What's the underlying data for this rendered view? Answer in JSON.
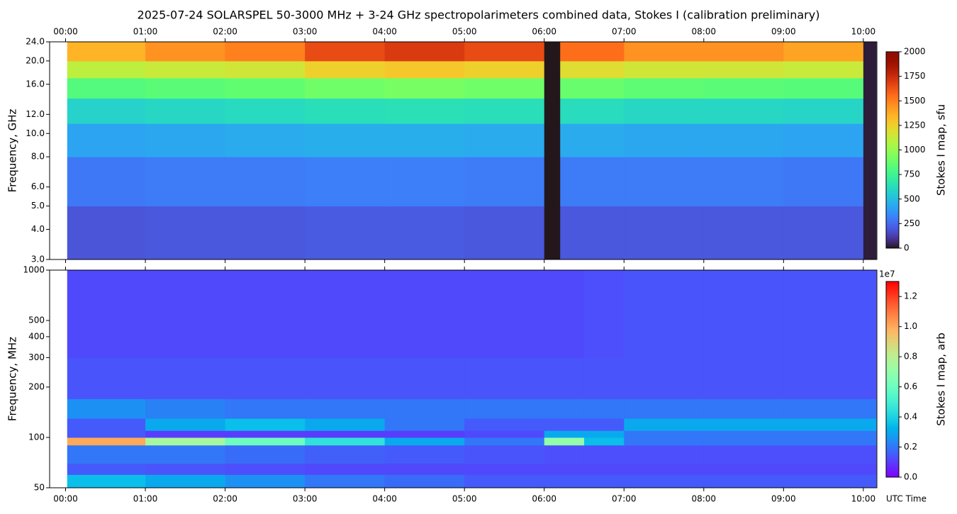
{
  "chart_data": [
    {
      "type": "heatmap",
      "title": "2025-07-24  SOLARSPEL  50-3000 MHz  +  3-24 GHz  spectropolarimeters combined data,  Stokes I  (calibration preliminary)",
      "ylabel": "Frequency, GHz",
      "clabel": "Stokes I map, sfu",
      "colormap": "turbo",
      "xaxis_position": "top",
      "yscale": "log",
      "x_edges": [
        0.02,
        1,
        2,
        3,
        4,
        5,
        6,
        6.2,
        7,
        8,
        9,
        10,
        10.16
      ],
      "y_edges": [
        3,
        5,
        8,
        11,
        14,
        17,
        20,
        24
      ],
      "z": [
        [
          190,
          200,
          200,
          210,
          210,
          200,
          0,
          200,
          200,
          200,
          200,
          20
        ],
        [
          290,
          300,
          300,
          310,
          310,
          300,
          0,
          300,
          300,
          300,
          290,
          20
        ],
        [
          420,
          430,
          440,
          450,
          450,
          440,
          0,
          440,
          430,
          430,
          420,
          20
        ],
        [
          580,
          600,
          610,
          630,
          640,
          630,
          0,
          620,
          600,
          600,
          590,
          20
        ],
        [
          820,
          840,
          860,
          900,
          920,
          900,
          0,
          880,
          850,
          840,
          830,
          20
        ],
        [
          1100,
          1130,
          1150,
          1250,
          1280,
          1250,
          0,
          1200,
          1150,
          1150,
          1130,
          20
        ],
        [
          1350,
          1450,
          1500,
          1650,
          1700,
          1650,
          0,
          1550,
          1450,
          1450,
          1400,
          20
        ]
      ],
      "xlim": [
        -0.2,
        10.17
      ],
      "xticks": [
        {
          "value": 0,
          "label": "00:00"
        },
        {
          "value": 1,
          "label": "01:00"
        },
        {
          "value": 2,
          "label": "02:00"
        },
        {
          "value": 3,
          "label": "03:00"
        },
        {
          "value": 4,
          "label": "04:00"
        },
        {
          "value": 5,
          "label": "05:00"
        },
        {
          "value": 6,
          "label": "06:00"
        },
        {
          "value": 7,
          "label": "07:00"
        },
        {
          "value": 8,
          "label": "08:00"
        },
        {
          "value": 9,
          "label": "09:00"
        },
        {
          "value": 10,
          "label": "10:00"
        }
      ],
      "ylim": [
        3,
        24
      ],
      "yticks": [
        {
          "value": 3,
          "label": "3.0"
        },
        {
          "value": 4,
          "label": "4.0"
        },
        {
          "value": 5,
          "label": "5.0"
        },
        {
          "value": 6,
          "label": "6.0"
        },
        {
          "value": 8,
          "label": "8.0"
        },
        {
          "value": 10,
          "label": "10.0"
        },
        {
          "value": 12,
          "label": "12.0"
        },
        {
          "value": 16,
          "label": "16.0"
        },
        {
          "value": 20,
          "label": "20.0"
        },
        {
          "value": 24,
          "label": "24.0"
        }
      ],
      "clim": [
        0,
        2000
      ],
      "cticks": [
        0,
        250,
        500,
        750,
        1000,
        1250,
        1500,
        1750,
        2000
      ]
    },
    {
      "type": "heatmap",
      "ylabel": "Frequency, MHz",
      "xlabel": "UTC Time",
      "clabel": "Stokes I map, arb",
      "colorbar_offset_label": "1e7",
      "colormap": "rainbow",
      "xaxis_position": "bottom",
      "yscale": "log",
      "x_edges": [
        0.02,
        1,
        2,
        3,
        4,
        5,
        6,
        6.5,
        7,
        8,
        9,
        10,
        10.16
      ],
      "y_edges": [
        50,
        60,
        70,
        90,
        100,
        110,
        130,
        170,
        300,
        1000
      ],
      "z": [
        [
          0.35,
          0.3,
          0.25,
          0.2,
          0.18,
          0.15,
          0.15,
          0.15,
          0.15,
          0.15,
          0.15,
          0.15
        ],
        [
          0.15,
          0.14,
          0.13,
          0.12,
          0.12,
          0.12,
          0.12,
          0.12,
          0.12,
          0.12,
          0.12,
          0.12
        ],
        [
          0.2,
          0.2,
          0.18,
          0.16,
          0.15,
          0.14,
          0.13,
          0.13,
          0.13,
          0.13,
          0.13,
          0.13
        ],
        [
          1.0,
          0.75,
          0.6,
          0.45,
          0.3,
          0.2,
          0.7,
          0.35,
          0.2,
          0.2,
          0.2,
          0.2
        ],
        [
          0.15,
          0.1,
          0.1,
          0.1,
          0.1,
          0.12,
          0.3,
          0.3,
          0.2,
          0.2,
          0.2,
          0.2
        ],
        [
          0.15,
          0.3,
          0.35,
          0.3,
          0.2,
          0.15,
          0.15,
          0.15,
          0.3,
          0.3,
          0.3,
          0.3
        ],
        [
          0.25,
          0.22,
          0.2,
          0.2,
          0.2,
          0.2,
          0.2,
          0.2,
          0.2,
          0.2,
          0.2,
          0.2
        ],
        [
          0.14,
          0.14,
          0.14,
          0.14,
          0.14,
          0.14,
          0.14,
          0.14,
          0.14,
          0.14,
          0.14,
          0.14
        ],
        [
          0.12,
          0.12,
          0.12,
          0.12,
          0.12,
          0.12,
          0.12,
          0.13,
          0.14,
          0.14,
          0.14,
          0.14
        ]
      ],
      "xlim": [
        -0.2,
        10.17
      ],
      "xticks": [
        {
          "value": 0,
          "label": "00:00"
        },
        {
          "value": 1,
          "label": "01:00"
        },
        {
          "value": 2,
          "label": "02:00"
        },
        {
          "value": 3,
          "label": "03:00"
        },
        {
          "value": 4,
          "label": "04:00"
        },
        {
          "value": 5,
          "label": "05:00"
        },
        {
          "value": 6,
          "label": "06:00"
        },
        {
          "value": 7,
          "label": "07:00"
        },
        {
          "value": 8,
          "label": "08:00"
        },
        {
          "value": 9,
          "label": "09:00"
        },
        {
          "value": 10,
          "label": "10:00"
        }
      ],
      "ylim": [
        50,
        1000
      ],
      "yticks": [
        50,
        100,
        200,
        300,
        400,
        500,
        1000
      ],
      "clim": [
        0,
        1.3
      ],
      "cticks": [
        {
          "value": 0,
          "label": "0.0"
        },
        0.2,
        0.4,
        0.6,
        0.8,
        {
          "value": 1,
          "label": "1.0"
        },
        1.2
      ]
    }
  ]
}
